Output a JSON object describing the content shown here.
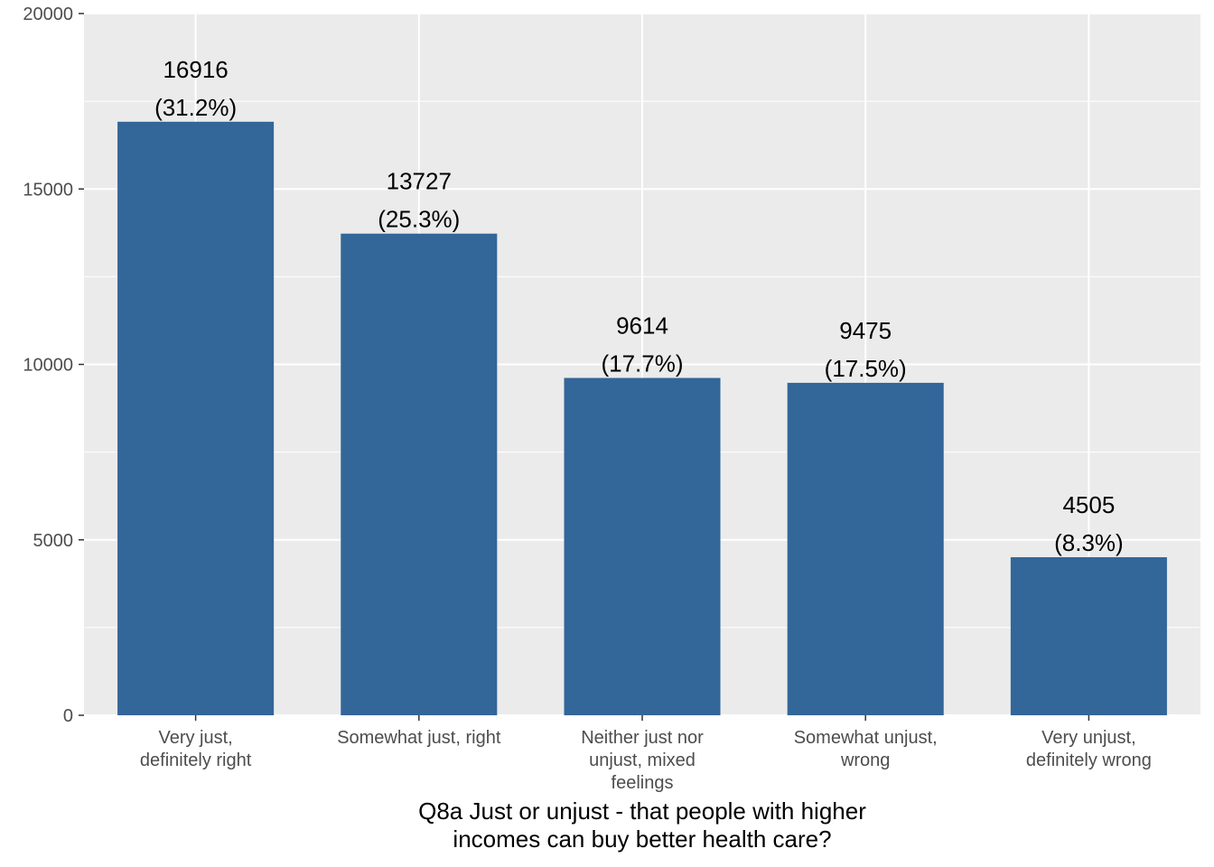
{
  "chart_data": {
    "type": "bar",
    "title": "",
    "xlabel": [
      "Q8a Just or unjust - that people with higher",
      "incomes can buy better health care?"
    ],
    "ylabel": "",
    "ylim": [
      0,
      20000
    ],
    "yticks": [
      0,
      5000,
      10000,
      15000,
      20000
    ],
    "categories": [
      [
        "Very just,",
        "definitely right"
      ],
      [
        "Somewhat just, right"
      ],
      [
        "Neither just nor",
        "unjust, mixed",
        "feelings"
      ],
      [
        "Somewhat unjust,",
        "wrong"
      ],
      [
        "Very unjust,",
        "definitely wrong"
      ]
    ],
    "values": [
      16916,
      13727,
      9614,
      9475,
      4505
    ],
    "percent_labels": [
      "(31.2%)",
      "(25.3%)",
      "(17.7%)",
      "(17.5%)",
      "(8.3%)"
    ],
    "grid": true,
    "legend": "none",
    "colors": {
      "bar": "#336699",
      "panel": "#EBEBEB",
      "grid": "#FFFFFF"
    }
  }
}
